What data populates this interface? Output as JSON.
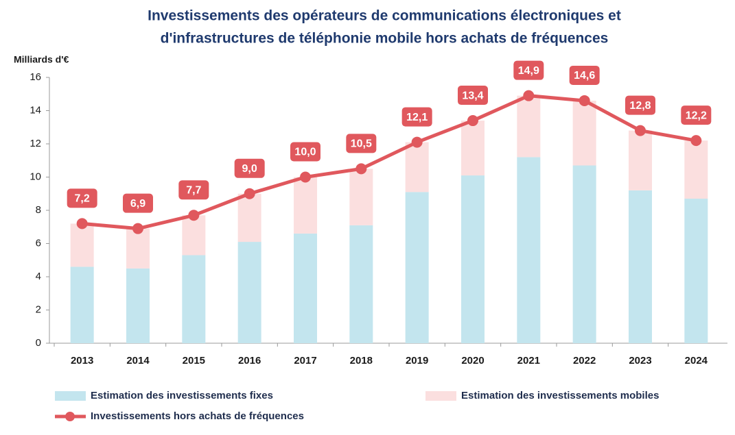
{
  "chart_data": {
    "type": "bar",
    "stacked": true,
    "title": [
      "Investissements des opérateurs de communications électroniques et",
      "d'infrastructures de téléphonie mobile hors achats de fréquences"
    ],
    "y_label": "Milliards d'€",
    "categories": [
      "2013",
      "2014",
      "2015",
      "2016",
      "2017",
      "2018",
      "2019",
      "2020",
      "2021",
      "2022",
      "2023",
      "2024"
    ],
    "series": [
      {
        "name": "Estimation des investissements fixes",
        "type": "bar",
        "color": "#c3e5ee",
        "values": [
          4.6,
          4.5,
          5.3,
          6.1,
          6.6,
          7.1,
          9.1,
          10.1,
          11.2,
          10.7,
          9.2,
          8.7
        ]
      },
      {
        "name": "Estimation des investissements mobiles",
        "type": "bar",
        "color": "#fbdfdf",
        "values": [
          2.6,
          2.4,
          2.4,
          2.9,
          3.4,
          3.4,
          3.0,
          3.3,
          3.7,
          3.9,
          3.6,
          3.5
        ]
      },
      {
        "name": "Investissements hors achats de fréquences",
        "type": "line",
        "color": "#e0585d",
        "values": [
          7.2,
          6.9,
          7.7,
          9.0,
          10.0,
          10.5,
          12.1,
          13.4,
          14.9,
          14.6,
          12.8,
          12.2
        ],
        "value_labels": [
          "7,2",
          "6,9",
          "7,7",
          "9,0",
          "10,0",
          "10,5",
          "12,1",
          "13,4",
          "14,9",
          "14,6",
          "12,8",
          "12,2"
        ]
      }
    ],
    "ylim": [
      0,
      16
    ],
    "yticks": [
      0,
      2,
      4,
      6,
      8,
      10,
      12,
      14,
      16
    ],
    "grid": false
  }
}
